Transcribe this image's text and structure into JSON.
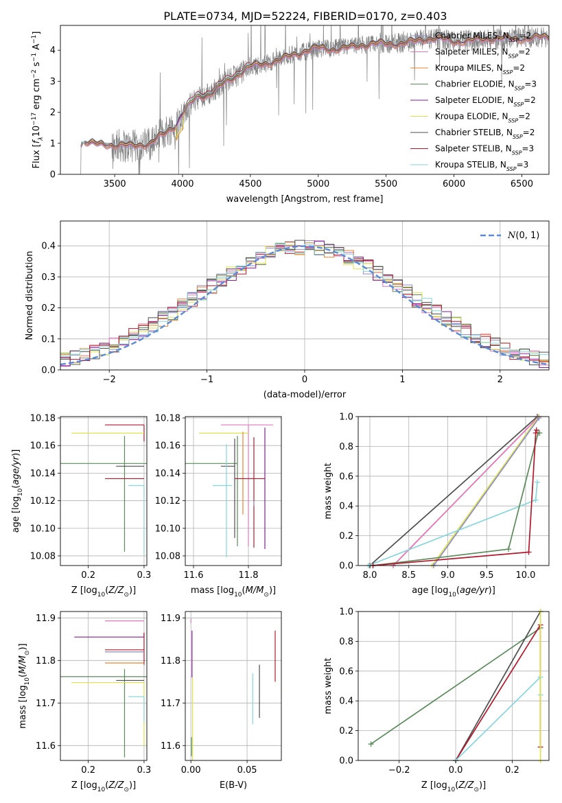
{
  "colors": {
    "Chabrier MILES": "#8c8cc9",
    "Salpeter MILES": "#e377c2",
    "Kroupa MILES": "#e8822e",
    "Chabrier ELODIE": "#5a8a5a",
    "Salpeter ELODIE": "#8b1a9b",
    "Kroupa ELODIE": "#dde24c",
    "Chabrier STELIB": "#4d4d4d",
    "Salpeter STELIB": "#b2182b",
    "Kroupa STELIB": "#86d6dd",
    "observed": "#808080",
    "normal": "#5b8bd6"
  },
  "chart_data": [
    {
      "id": "spectrum",
      "type": "line",
      "title": "PLATE=0734, MJD=52224, FIBERID=0170, z=0.403",
      "xlabel": "wavelength [Angstrom, rest frame]",
      "ylabel": "Flux [f_λ 10^-17 erg cm^-2 s^-1 A^-1]",
      "ylabel_parts": [
        "Flux [",
        "f",
        "λ",
        "10",
        "−17",
        " erg cm",
        "−2",
        " s",
        "−1",
        " A",
        "−1",
        "]"
      ],
      "xlim": [
        3100,
        6700
      ],
      "ylim": [
        0,
        4.8
      ],
      "xticks": [
        3500,
        4000,
        4500,
        5000,
        5500,
        6000,
        6500
      ],
      "yticks": [
        0,
        1,
        2,
        3,
        4
      ],
      "grid": false,
      "legend_position": "top-right",
      "model_anchor_x": [
        3250,
        3280,
        3320,
        3380,
        3450,
        3500,
        3560,
        3620,
        3700,
        3760,
        3800,
        3850,
        3900,
        3950,
        4000,
        4050,
        4100,
        4200,
        4300,
        4400,
        4500,
        4600,
        4700,
        4800,
        4900,
        5000,
        5100,
        5200,
        5300,
        5400,
        5500,
        5600,
        5700,
        5800,
        5900,
        6000,
        6100,
        6200,
        6300,
        6400,
        6500,
        6600,
        6700
      ],
      "model_anchor_y": [
        0.95,
        1.05,
        1.02,
        1.0,
        0.98,
        0.95,
        0.92,
        0.88,
        0.95,
        1.0,
        1.15,
        1.3,
        1.45,
        1.6,
        1.95,
        2.2,
        2.45,
        2.6,
        2.95,
        3.2,
        3.45,
        3.55,
        3.7,
        3.85,
        3.95,
        4.05,
        4.05,
        4.1,
        4.15,
        4.18,
        4.2,
        4.25,
        4.3,
        4.35,
        4.35,
        4.3,
        4.33,
        4.35,
        4.35,
        4.38,
        4.4,
        4.42,
        4.42
      ],
      "series": [
        {
          "name": "Chabrier MILES",
          "nssp": "2"
        },
        {
          "name": "Salpeter MILES",
          "nssp": "2"
        },
        {
          "name": "Kroupa MILES",
          "nssp": "2"
        },
        {
          "name": "Chabrier ELODIE",
          "nssp": "3"
        },
        {
          "name": "Salpeter ELODIE",
          "nssp": "2"
        },
        {
          "name": "Kroupa ELODIE",
          "nssp": "2"
        },
        {
          "name": "Chabrier STELIB",
          "nssp": "2"
        },
        {
          "name": "Salpeter STELIB",
          "nssp": "3"
        },
        {
          "name": "Kroupa STELIB",
          "nssp": "3"
        }
      ],
      "legend_nssp_label": "N_SSP"
    },
    {
      "id": "residuals",
      "type": "line",
      "xlabel": "(data-model)/error",
      "ylabel": "Normed distribution",
      "xlim": [
        -2.5,
        2.5
      ],
      "ylim": [
        0,
        0.48
      ],
      "xticks": [
        -2,
        -1,
        0,
        1,
        2
      ],
      "yticks": [
        0.0,
        0.1,
        0.2,
        0.3,
        0.4
      ],
      "grid": true,
      "legend_position": "top-right",
      "reference_curve": {
        "name": "N(0,1)",
        "mean": 0,
        "sigma": 1
      }
    },
    {
      "id": "age-vs-Z",
      "type": "scatter",
      "xlabel": "Z [log10(Z/Z⊙)]",
      "ylabel": "age [log10(age/yr)]",
      "xlim": [
        0.15,
        0.305
      ],
      "ylim": [
        10.073,
        10.181
      ],
      "xticks": [
        0.2,
        0.3
      ],
      "yticks": [
        10.08,
        10.1,
        10.12,
        10.14,
        10.16,
        10.18
      ],
      "grid": true,
      "points": [
        {
          "series": "Salpeter STELIB",
          "x": 0.3,
          "y": 10.175,
          "xerr": [
            0.07,
            0
          ],
          "yerr": [
            0.012,
            0
          ]
        },
        {
          "series": "Kroupa ELODIE",
          "x": 0.3,
          "y": 10.169,
          "xerr": [
            0.13,
            0
          ],
          "yerr": [
            0,
            0
          ]
        },
        {
          "series": "Chabrier ELODIE",
          "x": 0.265,
          "y": 10.147,
          "xerr": [
            0.12,
            0.04
          ],
          "yerr": [
            0.064,
            0.02
          ]
        },
        {
          "series": "Chabrier STELIB",
          "x": 0.3,
          "y": 10.145,
          "xerr": [
            0.05,
            0
          ],
          "yerr": [
            0,
            0
          ]
        },
        {
          "series": "Salpeter STELIB",
          "x": 0.3,
          "y": 10.136,
          "xerr": [
            0.07,
            0
          ],
          "yerr": [
            0,
            0
          ]
        },
        {
          "series": "Kroupa STELIB",
          "x": 0.3,
          "y": 10.131,
          "xerr": [
            0.028,
            0
          ],
          "yerr": [
            0.05,
            0
          ]
        }
      ]
    },
    {
      "id": "age-vs-mass",
      "type": "scatter",
      "xlabel": "mass [log10(M/M⊙)]",
      "xlim": [
        11.57,
        11.92
      ],
      "ylim": [
        10.073,
        10.181
      ],
      "xticks": [
        11.6,
        11.8
      ],
      "yticks": [
        10.08,
        10.1,
        10.12,
        10.14,
        10.16,
        10.18
      ],
      "grid": true,
      "points": [
        {
          "series": "Salpeter MILES",
          "x": 11.8,
          "y": 10.175,
          "xerr": [
            0.1,
            0.09
          ],
          "yerr": [
            0.088,
            0
          ]
        },
        {
          "series": "Salpeter ELODIE",
          "x": 11.86,
          "y": 10.17,
          "xerr": [
            0,
            0
          ],
          "yerr": [
            0.085,
            0.003
          ]
        },
        {
          "series": "Kroupa ELODIE",
          "x": 11.75,
          "y": 10.169,
          "xerr": [
            0.13,
            0.05
          ],
          "yerr": [
            0,
            0
          ]
        },
        {
          "series": "Kroupa MILES",
          "x": 11.78,
          "y": 10.17,
          "xerr": [
            0,
            0
          ],
          "yerr": [
            0.06,
            0
          ]
        },
        {
          "series": "Chabrier ELODIE",
          "x": 11.76,
          "y": 10.147,
          "xerr": [
            0.19,
            0
          ],
          "yerr": [
            0.06,
            0.02
          ]
        },
        {
          "series": "Chabrier STELIB",
          "x": 11.75,
          "y": 10.145,
          "xerr": [
            0.05,
            0
          ],
          "yerr": [
            0.052,
            0.02
          ]
        },
        {
          "series": "Salpeter STELIB",
          "x": 11.82,
          "y": 10.136,
          "xerr": [
            0.07,
            0.04
          ],
          "yerr": [
            0.05,
            0.03
          ]
        },
        {
          "series": "Kroupa STELIB",
          "x": 11.72,
          "y": 10.131,
          "xerr": [
            0.05,
            0.02
          ],
          "yerr": [
            0.052,
            0.03
          ]
        },
        {
          "series": "Chabrier MILES",
          "x": 11.82,
          "y": 10.12,
          "xerr": [
            0,
            0
          ],
          "yerr": [
            0.004,
            0
          ]
        }
      ]
    },
    {
      "id": "mass-weight-vs-age",
      "type": "line",
      "xlabel": "age [log10(age/yr)]",
      "ylabel": "mass weight",
      "xlim": [
        7.85,
        10.3
      ],
      "ylim": [
        0,
        1
      ],
      "xticks": [
        8.0,
        8.5,
        9.0,
        9.5,
        10.0
      ],
      "yticks": [
        0.0,
        0.2,
        0.4,
        0.6,
        0.8,
        1.0
      ],
      "grid": true,
      "curves": [
        {
          "series": "Chabrier STELIB",
          "x": [
            8.0,
            10.15
          ],
          "y": [
            0.0,
            1.0
          ]
        },
        {
          "series": "Kroupa MILES",
          "x": [
            8.3,
            10.17
          ],
          "y": [
            0.0,
            1.0
          ]
        },
        {
          "series": "Salpeter MILES",
          "x": [
            8.3,
            10.17
          ],
          "y": [
            0.0,
            1.0
          ]
        },
        {
          "series": "Kroupa ELODIE",
          "x": [
            8.8,
            10.17
          ],
          "y": [
            0.0,
            1.0
          ]
        },
        {
          "series": "Chabrier MILES",
          "x": [
            8.82,
            10.17
          ],
          "y": [
            0.0,
            0.99
          ]
        },
        {
          "series": "Kroupa STELIB",
          "x": [
            7.98,
            10.13,
            10.15
          ],
          "y": [
            0.0,
            0.44,
            0.56
          ]
        },
        {
          "series": "Chabrier ELODIE",
          "x": [
            8.04,
            9.78,
            10.16,
            10.18
          ],
          "y": [
            0.0,
            0.11,
            0.89,
            0.89
          ]
        },
        {
          "series": "Salpeter STELIB",
          "x": [
            8.04,
            10.04,
            10.13,
            10.14
          ],
          "y": [
            0.0,
            0.09,
            0.89,
            0.91
          ]
        }
      ]
    },
    {
      "id": "mass-vs-Z",
      "type": "scatter",
      "xlabel": "Z [log10(Z/Z⊙)]",
      "ylabel": "mass [log10(M/M⊙)]",
      "xlim": [
        0.15,
        0.305
      ],
      "ylim": [
        11.565,
        11.915
      ],
      "xticks": [
        0.2,
        0.3
      ],
      "yticks": [
        11.6,
        11.7,
        11.8,
        11.9
      ],
      "grid": true,
      "points": [
        {
          "series": "Salpeter MILES",
          "x": 0.3,
          "y": 11.893,
          "xerr": [
            0.07,
            0
          ],
          "yerr": [
            0,
            0
          ]
        },
        {
          "series": "Salpeter ELODIE",
          "x": 0.3,
          "y": 11.855,
          "xerr": [
            0.125,
            0
          ],
          "yerr": [
            0,
            0.01
          ]
        },
        {
          "series": "Salpeter STELIB",
          "x": 0.3,
          "y": 11.825,
          "xerr": [
            0.07,
            0
          ],
          "yerr": [
            0.035,
            0.04
          ]
        },
        {
          "series": "Chabrier MILES",
          "x": 0.3,
          "y": 11.82,
          "xerr": [
            0.07,
            0
          ],
          "yerr": [
            0,
            0
          ]
        },
        {
          "series": "Kroupa MILES",
          "x": 0.3,
          "y": 11.794,
          "xerr": [
            0.07,
            0
          ],
          "yerr": [
            0,
            0
          ]
        },
        {
          "series": "Chabrier ELODIE",
          "x": 0.265,
          "y": 11.762,
          "xerr": [
            0.12,
            0.04
          ],
          "yerr": [
            0.19,
            0.018
          ]
        },
        {
          "series": "Chabrier STELIB",
          "x": 0.3,
          "y": 11.753,
          "xerr": [
            0.05,
            0
          ],
          "yerr": [
            0,
            0
          ]
        },
        {
          "series": "Kroupa ELODIE",
          "x": 0.3,
          "y": 11.748,
          "xerr": [
            0.13,
            0
          ],
          "yerr": [
            0.15,
            0
          ]
        },
        {
          "series": "Kroupa STELIB",
          "x": 0.3,
          "y": 11.715,
          "xerr": [
            0.028,
            0
          ],
          "yerr": [
            0.06,
            0
          ]
        }
      ]
    },
    {
      "id": "mass-vs-EBV",
      "type": "scatter",
      "xlabel": "E(B-V)",
      "xlim": [
        -0.005,
        0.0805
      ],
      "ylim": [
        11.565,
        11.915
      ],
      "xticks": [
        0.0,
        0.05
      ],
      "yticks": [
        11.6,
        11.7,
        11.8,
        11.9
      ],
      "grid": true,
      "points": [
        {
          "series": "Salpeter MILES",
          "x": 0.0,
          "y": 11.893,
          "xerr": [
            0,
            0
          ],
          "yerr": [
            0.005,
            0.005
          ]
        },
        {
          "series": "Salpeter ELODIE",
          "x": 0.001,
          "y": 11.82,
          "xerr": [
            0,
            0
          ],
          "yerr": [
            0.06,
            0.05
          ]
        },
        {
          "series": "Kroupa ELODIE",
          "x": 0.0015,
          "y": 11.67,
          "xerr": [
            0,
            0
          ],
          "yerr": [
            0.11,
            0.09
          ]
        },
        {
          "series": "Chabrier ELODIE",
          "x": 0.0005,
          "y": 11.6,
          "xerr": [
            0,
            0
          ],
          "yerr": [
            0.025,
            0.02
          ]
        },
        {
          "series": "Salpeter STELIB",
          "x": 0.075,
          "y": 11.81,
          "xerr": [
            0,
            0
          ],
          "yerr": [
            0.06,
            0.06
          ]
        },
        {
          "series": "Chabrier STELIB",
          "x": 0.061,
          "y": 11.73,
          "xerr": [
            0,
            0
          ],
          "yerr": [
            0.065,
            0.06
          ]
        },
        {
          "series": "Kroupa STELIB",
          "x": 0.055,
          "y": 11.71,
          "xerr": [
            0,
            0
          ],
          "yerr": [
            0.06,
            0.06
          ]
        }
      ]
    },
    {
      "id": "mass-weight-vs-Z",
      "type": "line",
      "xlabel": "Z [log10(Z/Z⊙)]",
      "ylabel": "mass weight",
      "xlim": [
        -0.345,
        0.33
      ],
      "ylim": [
        0,
        1
      ],
      "xticks": [
        -0.2,
        0.0,
        0.2
      ],
      "yticks": [
        0.0,
        0.2,
        0.4,
        0.6,
        0.8,
        1.0
      ],
      "grid": true,
      "curves": [
        {
          "series": "Chabrier ELODIE",
          "x": [
            -0.3,
            0.3,
            0.3
          ],
          "y": [
            0.11,
            0.89,
            0.89
          ]
        },
        {
          "series": "Chabrier STELIB",
          "x": [
            0.0,
            0.3
          ],
          "y": [
            0.0,
            1.0
          ]
        },
        {
          "series": "Salpeter STELIB",
          "x": [
            0.0,
            0.3,
            0.3
          ],
          "y": [
            0.0,
            0.91,
            0.09
          ]
        },
        {
          "series": "Kroupa STELIB",
          "x": [
            0.0,
            0.3,
            0.3
          ],
          "y": [
            0.0,
            0.56,
            0.44
          ]
        },
        {
          "series": "Kroupa ELODIE",
          "x": [
            0.3,
            0.3
          ],
          "y": [
            0.0,
            1.0
          ]
        }
      ]
    }
  ]
}
